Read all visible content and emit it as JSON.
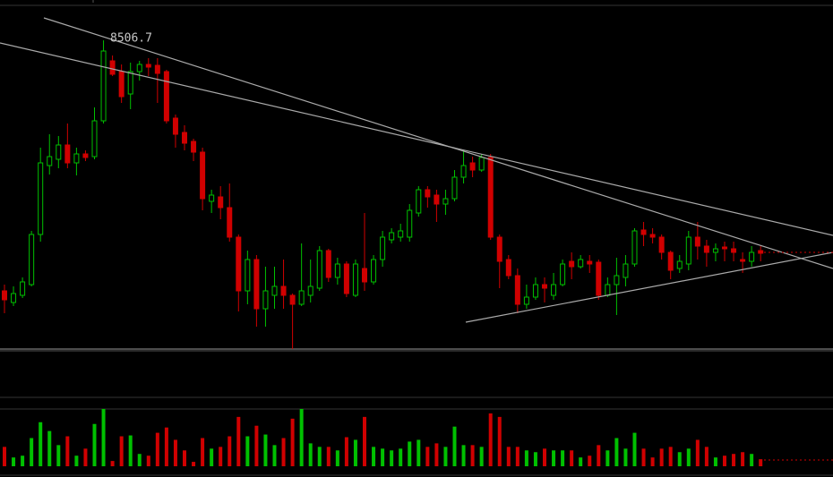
{
  "chart_data": {
    "type": "candlestick",
    "open": [
      7107,
      7042,
      7082,
      7142,
      7422,
      7807,
      7842,
      7922,
      7822,
      7872,
      7857,
      8057,
      8392,
      8332,
      8207,
      8332,
      8372,
      8367,
      8332,
      8072,
      7992,
      7942,
      7882,
      7607,
      7632,
      7572,
      7407,
      7107,
      7282,
      7007,
      7082,
      7132,
      7082,
      7032,
      7082,
      7122,
      7332,
      7182,
      7257,
      7082,
      7232,
      7157,
      7282,
      7392,
      7407,
      7407,
      7542,
      7672,
      7642,
      7592,
      7622,
      7742,
      7822,
      7782,
      7852,
      7407,
      7282,
      7192,
      7032,
      7072,
      7142,
      7082,
      7142,
      7272,
      7242,
      7272,
      7267,
      7082,
      7142,
      7182,
      7257,
      7447,
      7422,
      7407,
      7322,
      7232,
      7257,
      7407,
      7357,
      7322,
      7352,
      7342,
      7282,
      7272,
      7332
    ],
    "high": [
      7142,
      7132,
      7182,
      7442,
      7907,
      7982,
      7972,
      8042,
      7907,
      7892,
      8132,
      8506.7,
      8422,
      8372,
      8382,
      8392,
      8407,
      8407,
      8342,
      8092,
      8032,
      7957,
      7907,
      7672,
      7692,
      7707,
      7422,
      7332,
      7307,
      7242,
      7242,
      7282,
      7092,
      7372,
      7282,
      7357,
      7342,
      7292,
      7272,
      7282,
      7542,
      7307,
      7442,
      7457,
      7482,
      7592,
      7692,
      7692,
      7672,
      7672,
      7782,
      7892,
      7857,
      7872,
      7872,
      7422,
      7307,
      7232,
      7142,
      7182,
      7182,
      7207,
      7282,
      7322,
      7307,
      7307,
      7282,
      7182,
      7292,
      7307,
      7457,
      7492,
      7457,
      7422,
      7332,
      7307,
      7442,
      7492,
      7392,
      7372,
      7382,
      7382,
      7322,
      7357,
      7357
    ],
    "low": [
      6982,
      7022,
      7067,
      7132,
      7382,
      7757,
      7792,
      7792,
      7752,
      7832,
      7842,
      8042,
      8307,
      8157,
      8122,
      8282,
      8307,
      8157,
      8042,
      7907,
      7892,
      7832,
      7557,
      7542,
      7507,
      7382,
      6992,
      7032,
      6907,
      6907,
      7007,
      7007,
      6782,
      7022,
      7042,
      7107,
      7157,
      7142,
      7072,
      7072,
      7107,
      7142,
      7242,
      7372,
      7382,
      7382,
      7522,
      7572,
      7492,
      7532,
      7607,
      7707,
      7742,
      7772,
      7392,
      7122,
      7172,
      6982,
      7007,
      7057,
      7042,
      7057,
      7132,
      7172,
      7232,
      7207,
      7057,
      7072,
      6972,
      7132,
      7242,
      7357,
      7372,
      7282,
      7172,
      7207,
      7222,
      7282,
      7242,
      7272,
      7272,
      7272,
      7207,
      7242,
      7272
    ],
    "close": [
      7057,
      7092,
      7157,
      7422,
      7822,
      7857,
      7922,
      7822,
      7872,
      7852,
      8057,
      8447,
      8317,
      8192,
      8332,
      8372,
      8357,
      8322,
      8057,
      7982,
      7932,
      7882,
      7622,
      7642,
      7572,
      7407,
      7107,
      7282,
      7007,
      7107,
      7132,
      7082,
      7032,
      7107,
      7132,
      7332,
      7182,
      7257,
      7092,
      7257,
      7157,
      7282,
      7407,
      7432,
      7442,
      7557,
      7672,
      7632,
      7592,
      7622,
      7742,
      7807,
      7782,
      7852,
      7407,
      7272,
      7192,
      7032,
      7072,
      7142,
      7122,
      7142,
      7257,
      7242,
      7282,
      7257,
      7082,
      7142,
      7192,
      7257,
      7442,
      7422,
      7407,
      7322,
      7222,
      7272,
      7407,
      7357,
      7322,
      7342,
      7342,
      7322,
      7272,
      7322,
      7317
    ],
    "volume": [
      22,
      10,
      12,
      32,
      50,
      40,
      24,
      34,
      12,
      20,
      48,
      65,
      6,
      34,
      35,
      14,
      12,
      38,
      44,
      30,
      18,
      5,
      32,
      20,
      22,
      34,
      56,
      34,
      46,
      36,
      24,
      32,
      54,
      65,
      26,
      22,
      22,
      18,
      33,
      30,
      56,
      22,
      20,
      18,
      20,
      28,
      30,
      22,
      26,
      22,
      45,
      24,
      24,
      22,
      60,
      56,
      22,
      22,
      18,
      16,
      20,
      18,
      18,
      18,
      10,
      12,
      24,
      18,
      32,
      20,
      38,
      20,
      10,
      20,
      22,
      16,
      20,
      30,
      22,
      10,
      12,
      14,
      16,
      14,
      8
    ],
    "ylim": [
      6782,
      8702
    ],
    "volume_lim": [
      0,
      65
    ],
    "up_color": "#00c000",
    "down_color": "#d00000",
    "high_label_index": 11
  }
}
